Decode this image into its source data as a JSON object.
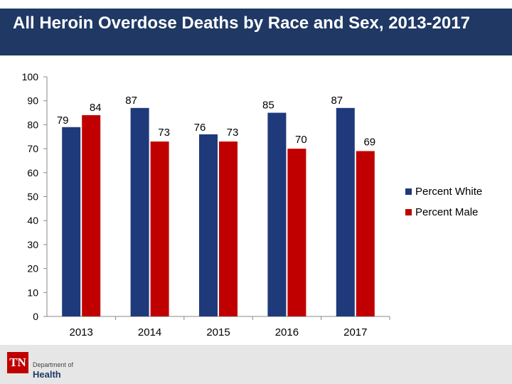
{
  "header": {
    "title": "All Heroin Overdose Deaths by Race and Sex, 2013-2017"
  },
  "footer": {
    "logo_mark": "TN",
    "logo_line1": "Department of",
    "logo_line2": "Health"
  },
  "chart_data": {
    "type": "bar",
    "title": "All Heroin Overdose Deaths by Race and Sex, 2013-2017",
    "categories": [
      "2013",
      "2014",
      "2015",
      "2016",
      "2017"
    ],
    "series": [
      {
        "name": "Percent White",
        "color": "#1f3a7a",
        "values": [
          79,
          87,
          76,
          85,
          87
        ]
      },
      {
        "name": "Percent Male",
        "color": "#c00000",
        "values": [
          84,
          73,
          73,
          70,
          69
        ]
      }
    ],
    "ylim": [
      0,
      100
    ],
    "yticks": [
      0,
      10,
      20,
      30,
      40,
      50,
      60,
      70,
      80,
      90,
      100
    ],
    "grid": false,
    "legend": "right"
  }
}
